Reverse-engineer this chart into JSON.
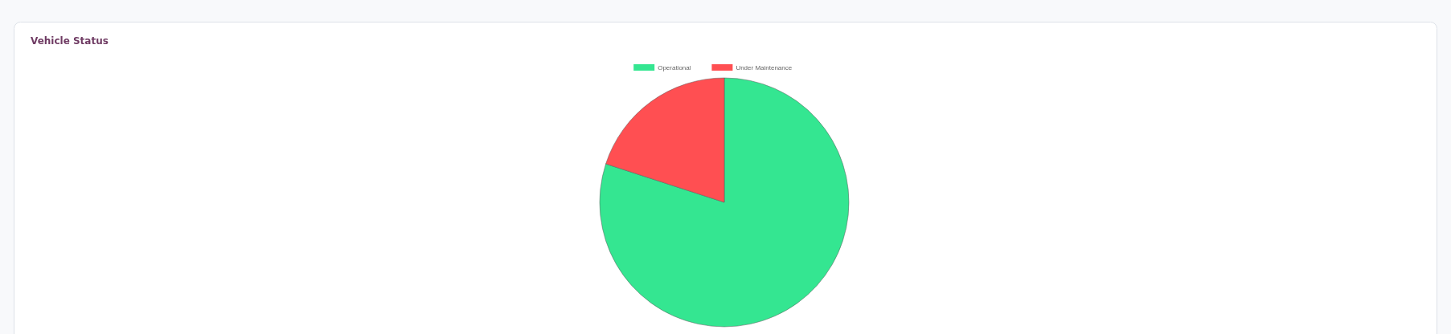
{
  "chart_data": {
    "type": "pie",
    "title": "Vehicle Status",
    "categories": [
      "Operational",
      "Under Maintenance"
    ],
    "values": [
      80,
      20
    ],
    "colors": [
      "#34e691",
      "#ff4f52"
    ],
    "legend": "top"
  }
}
